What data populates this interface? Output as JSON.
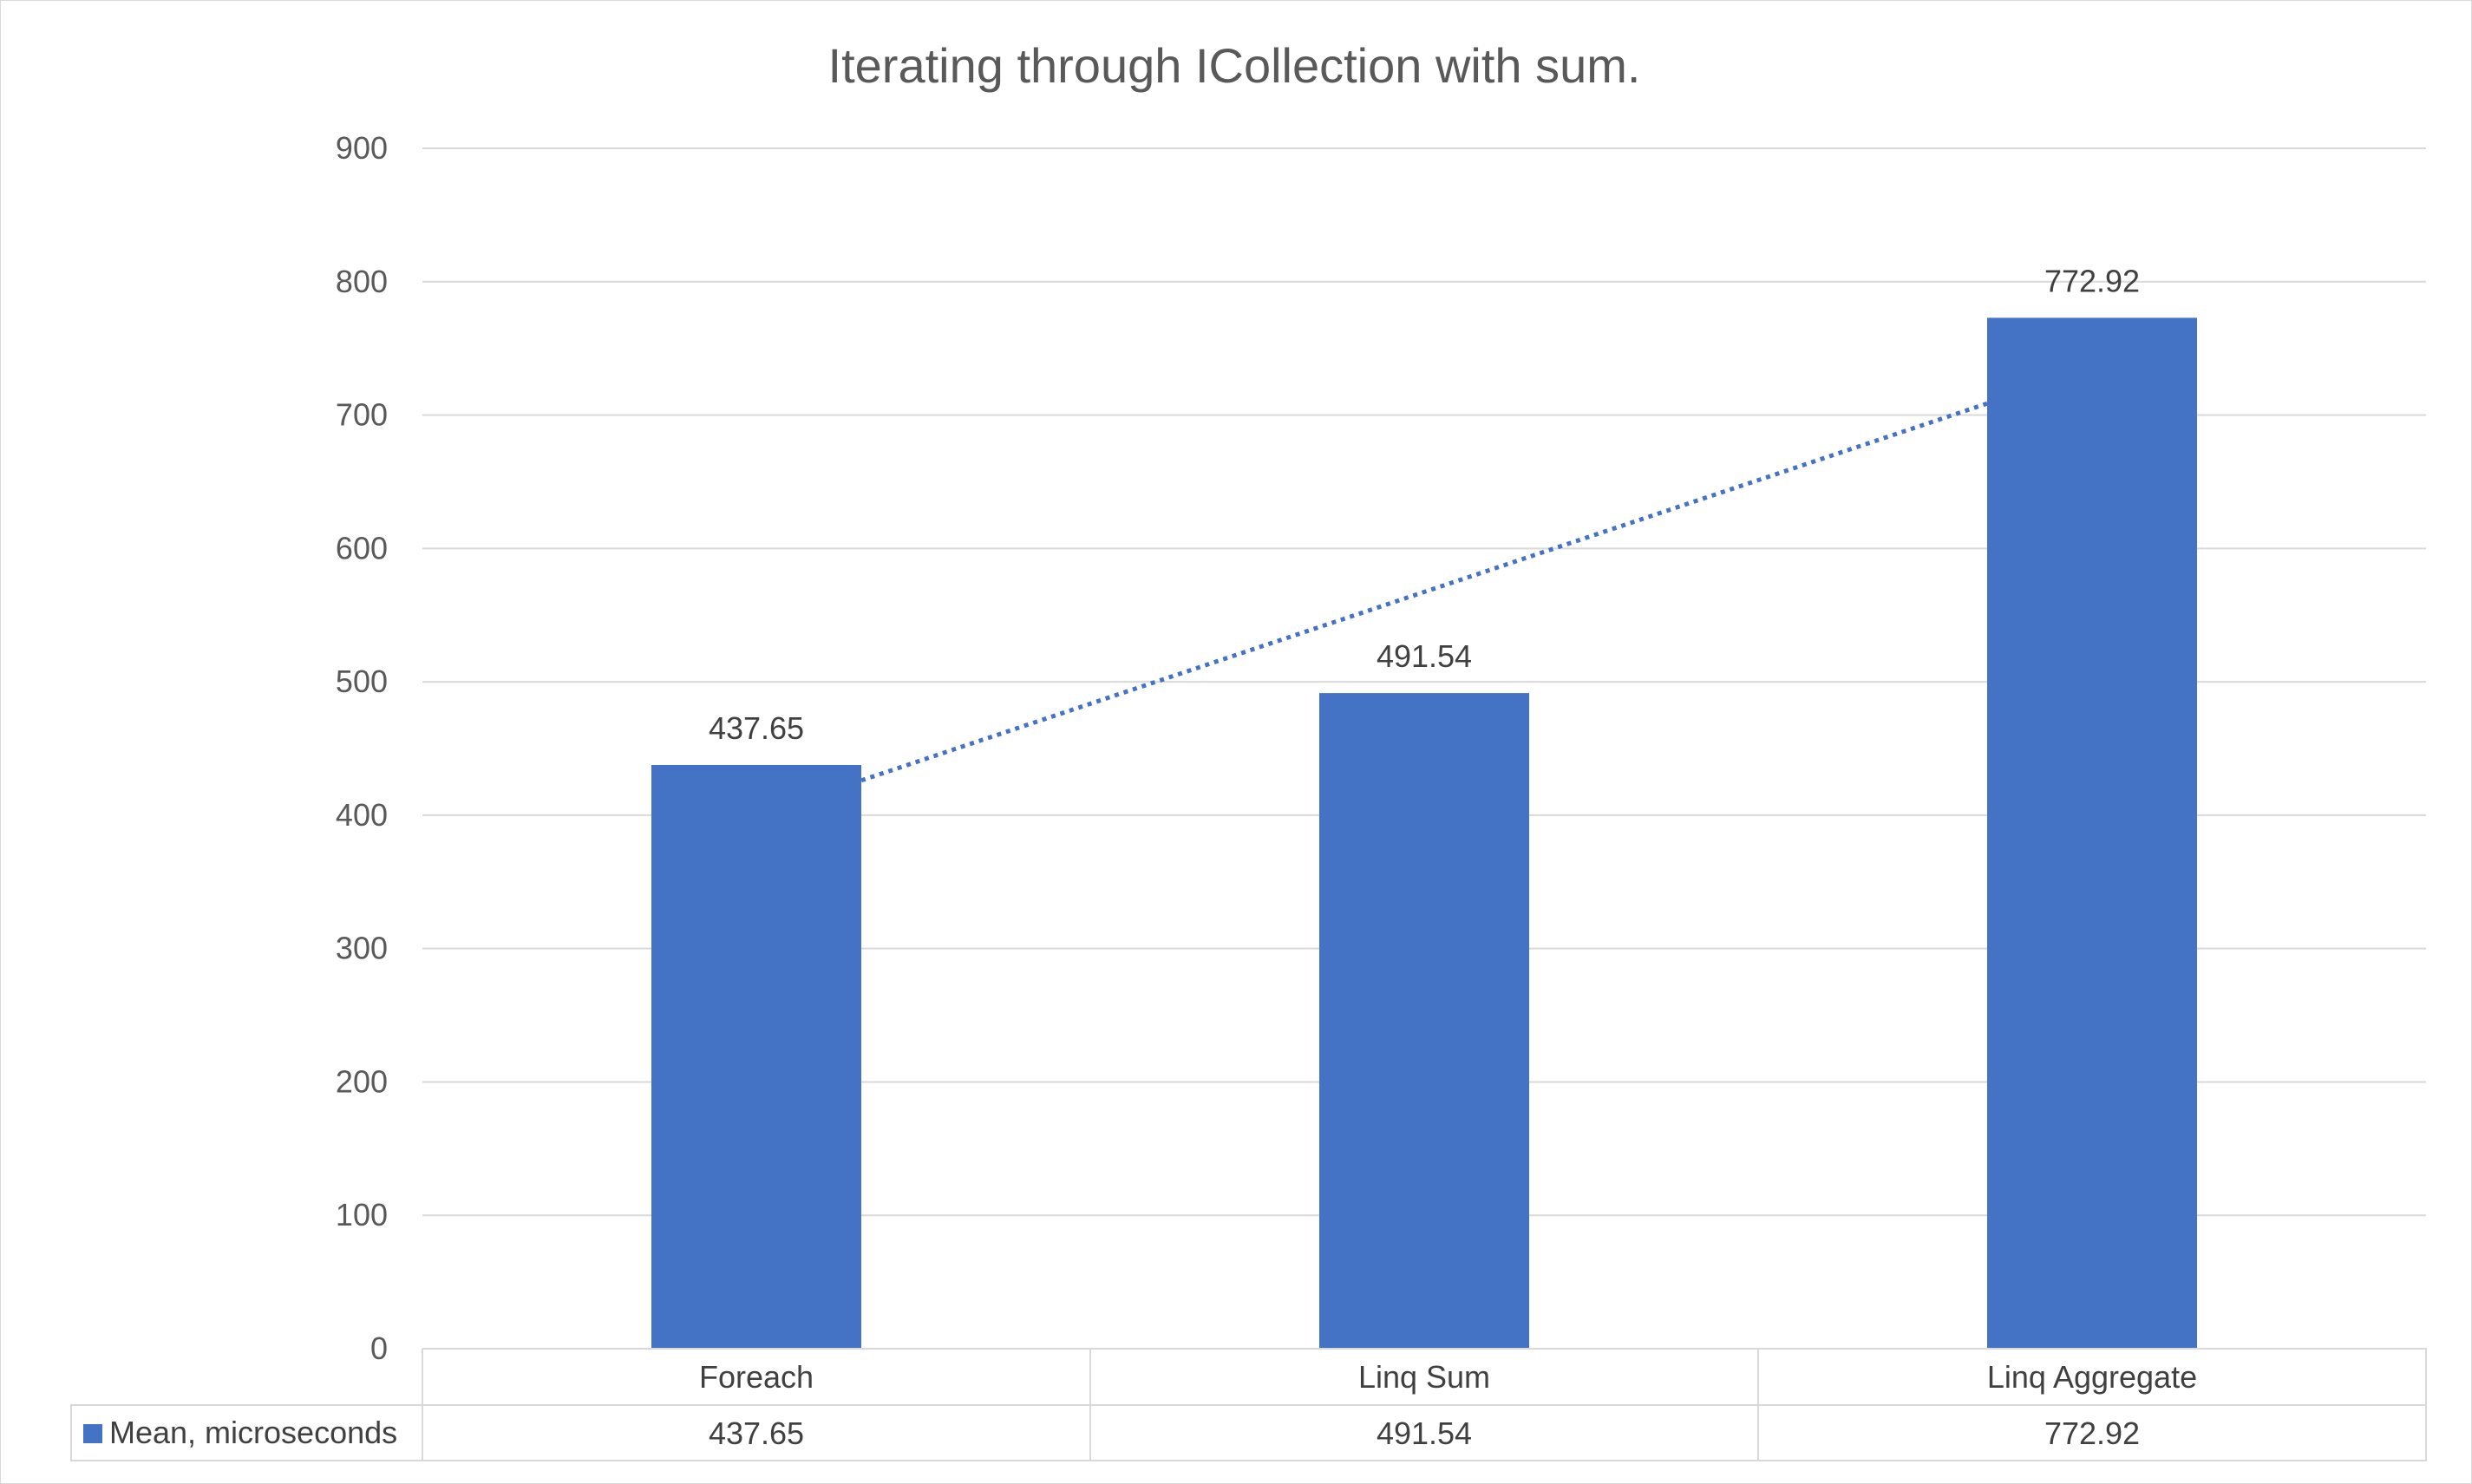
{
  "chart_data": {
    "type": "bar",
    "title": "Iterating through ICollection with sum.",
    "categories": [
      "Foreach",
      "Linq Sum",
      "Linq Aggregate"
    ],
    "series": [
      {
        "name": "Mean, microseconds",
        "values": [
          437.65,
          491.54,
          772.92
        ],
        "data_labels": [
          "437.65",
          "491.54",
          "772.92"
        ],
        "color": "#4472C4"
      }
    ],
    "trendline": {
      "type": "linear",
      "style": "dotted",
      "color": "#4472C4"
    },
    "ylim": [
      0,
      900
    ],
    "yticks": [
      0,
      100,
      200,
      300,
      400,
      500,
      600,
      700,
      800,
      900
    ],
    "grid": true,
    "legend": "data-table"
  }
}
